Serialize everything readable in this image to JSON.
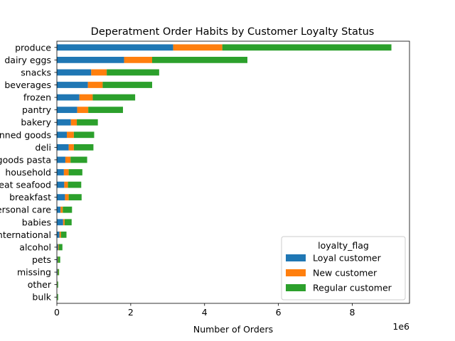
{
  "chart_data": {
    "type": "bar",
    "orientation": "horizontal",
    "stacked": true,
    "title": "Deperatment Order Habits by Customer Loyalty Status",
    "xlabel": "Number of Orders",
    "ylabel": "",
    "x_offset_label": "1e6",
    "xlim": [
      0,
      9.55
    ],
    "xticks": [
      0,
      2,
      4,
      6,
      8
    ],
    "grid": false,
    "legend": {
      "title": "loyalty_flag",
      "placement": "lower-right"
    },
    "categories": [
      "produce",
      "dairy eggs",
      "snacks",
      "beverages",
      "frozen",
      "pantry",
      "bakery",
      "canned goods",
      "deli",
      "dry goods pasta",
      "household",
      "meat seafood",
      "breakfast",
      "personal care",
      "babies",
      "international",
      "alcohol",
      "pets",
      "missing",
      "other",
      "bulk"
    ],
    "series": [
      {
        "name": "Loyal customer",
        "color": "#1f77b4",
        "values": [
          3.15,
          1.82,
          0.93,
          0.84,
          0.61,
          0.55,
          0.38,
          0.27,
          0.32,
          0.23,
          0.19,
          0.2,
          0.22,
          0.1,
          0.17,
          0.07,
          0.03,
          0.02,
          0.02,
          0.01,
          0.01
        ]
      },
      {
        "name": "New customer",
        "color": "#ff7f0e",
        "values": [
          1.33,
          0.76,
          0.42,
          0.4,
          0.36,
          0.3,
          0.16,
          0.19,
          0.14,
          0.14,
          0.13,
          0.1,
          0.1,
          0.06,
          0.04,
          0.04,
          0.02,
          0.01,
          0.01,
          0.005,
          0.004
        ]
      },
      {
        "name": "Regular customer",
        "color": "#2ca02c",
        "values": [
          4.58,
          2.58,
          1.42,
          1.34,
          1.15,
          0.94,
          0.57,
          0.55,
          0.53,
          0.45,
          0.37,
          0.36,
          0.35,
          0.25,
          0.19,
          0.15,
          0.1,
          0.06,
          0.03,
          0.02,
          0.02
        ]
      }
    ]
  }
}
